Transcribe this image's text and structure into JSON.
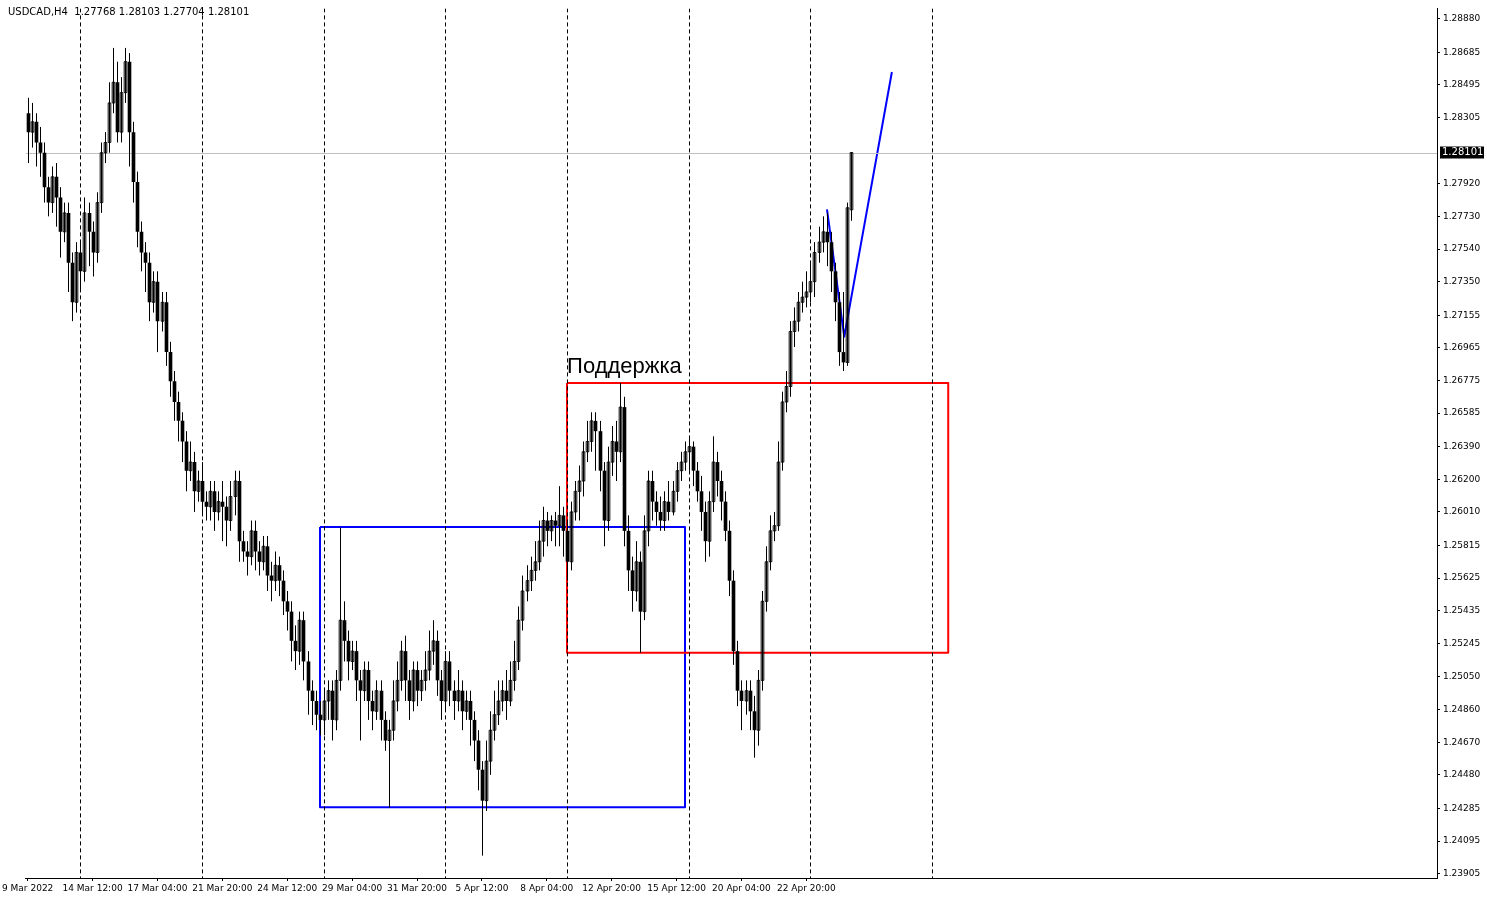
{
  "chart_data": {
    "type": "candlestick",
    "title": "USDCAD,H4  1.27768 1.28103 1.27704 1.28101",
    "categories": [
      "9 Mar 2022",
      null,
      null,
      null,
      null,
      null,
      null,
      null,
      null,
      null,
      null,
      null,
      null,
      null,
      null,
      null,
      "14 Mar 12:00",
      null,
      null,
      null,
      null,
      null,
      null,
      null,
      null,
      null,
      null,
      null,
      null,
      null,
      null,
      null,
      "17 Mar 04:00",
      null,
      null,
      null,
      null,
      null,
      null,
      null,
      null,
      null,
      null,
      null,
      null,
      null,
      null,
      null,
      "21 Mar 20:00",
      null,
      null,
      null,
      null,
      null,
      null,
      null,
      null,
      null,
      null,
      null,
      null,
      null,
      null,
      null,
      "24 Mar 12:00",
      null,
      null,
      null,
      null,
      null,
      null,
      null,
      null,
      null,
      null,
      null,
      null,
      null,
      null,
      null,
      "29 Mar 04:00",
      null,
      null,
      null,
      null,
      null,
      null,
      null,
      null,
      null,
      null,
      null,
      null,
      null,
      null,
      null,
      "31 Mar 20:00",
      null,
      null,
      null,
      null,
      null,
      null,
      null,
      null,
      null,
      null,
      null,
      null,
      null,
      null,
      null,
      "5 Apr 12:00",
      null,
      null,
      null,
      null,
      null,
      null,
      null,
      null,
      null,
      null,
      null,
      null,
      null,
      null,
      null,
      "8 Apr 04:00",
      null,
      null,
      null,
      null,
      null,
      null,
      null,
      null,
      null,
      null,
      null,
      null,
      null,
      null,
      null,
      "12 Apr 20:00",
      null,
      null,
      null,
      null,
      null,
      null,
      null,
      null,
      null,
      null,
      null,
      null,
      null,
      null,
      null,
      "15 Apr 12:00",
      null,
      null,
      null,
      null,
      null,
      null,
      null,
      null,
      null,
      null,
      null,
      null,
      null,
      null,
      null,
      "20 Apr 04:00",
      null,
      null,
      null,
      null,
      null,
      null,
      null,
      null,
      null,
      null,
      null,
      null,
      null,
      null,
      null,
      "22 Apr 20:00",
      null,
      null,
      null,
      null,
      null,
      null,
      null,
      null,
      null,
      null,
      null,
      null,
      null,
      null,
      null,
      null,
      null,
      null,
      null,
      null,
      null,
      null,
      null,
      null,
      null,
      null,
      null,
      null,
      null,
      null,
      null,
      null,
      null,
      null,
      null,
      null,
      null,
      null,
      null,
      null,
      null,
      null,
      null,
      null,
      null,
      null,
      null,
      null,
      null,
      null,
      null,
      null,
      null,
      null,
      null,
      null,
      null,
      null,
      null,
      null,
      null,
      null,
      null,
      null,
      null,
      null,
      null,
      null,
      null,
      null,
      null,
      null,
      null,
      null,
      null,
      null,
      null,
      null,
      null,
      null,
      null,
      null,
      null,
      null,
      null,
      null,
      null,
      null,
      null,
      null,
      null,
      null,
      null,
      null,
      null,
      null,
      null,
      null,
      null,
      null,
      null,
      null,
      null,
      null,
      null,
      null,
      null,
      null,
      null,
      null,
      null,
      null,
      null,
      null,
      null,
      null,
      null,
      null,
      null,
      null,
      null,
      null,
      null,
      null,
      null,
      null,
      null,
      null,
      null,
      null,
      null,
      null,
      null,
      null,
      null,
      null,
      null,
      null,
      null,
      null,
      null,
      null,
      null,
      null,
      null,
      null,
      null,
      null,
      null,
      null,
      null,
      null,
      null,
      null,
      null
    ],
    "ylim": [
      1.2388,
      1.2894
    ],
    "yticks": [
      {
        "value": 1.2888,
        "label": "1.28880"
      },
      {
        "value": 1.28685,
        "label": "1.28685"
      },
      {
        "value": 1.28495,
        "label": "1.28495"
      },
      {
        "value": 1.28305,
        "label": "1.28305"
      },
      {
        "value": 1.2792,
        "label": "1.27920"
      },
      {
        "value": 1.2773,
        "label": "1.27730"
      },
      {
        "value": 1.2754,
        "label": "1.27540"
      },
      {
        "value": 1.2735,
        "label": "1.27350"
      },
      {
        "value": 1.27155,
        "label": "1.27155"
      },
      {
        "value": 1.26965,
        "label": "1.26965"
      },
      {
        "value": 1.26775,
        "label": "1.26775"
      },
      {
        "value": 1.26585,
        "label": "1.26585"
      },
      {
        "value": 1.2639,
        "label": "1.26390"
      },
      {
        "value": 1.262,
        "label": "1.26200"
      },
      {
        "value": 1.2601,
        "label": "1.26010"
      },
      {
        "value": 1.25815,
        "label": "1.25815"
      },
      {
        "value": 1.25625,
        "label": "1.25625"
      },
      {
        "value": 1.25435,
        "label": "1.25435"
      },
      {
        "value": 1.25245,
        "label": "1.25245"
      },
      {
        "value": 1.2505,
        "label": "1.25050"
      },
      {
        "value": 1.2486,
        "label": "1.24860"
      },
      {
        "value": 1.2467,
        "label": "1.24670"
      },
      {
        "value": 1.2448,
        "label": "1.24480"
      },
      {
        "value": 1.24285,
        "label": "1.24285"
      },
      {
        "value": 1.24095,
        "label": "1.24095"
      },
      {
        "value": 1.23905,
        "label": "1.23905"
      }
    ],
    "grid": false,
    "legend": false,
    "ref_lines": [
      {
        "axis": "y",
        "value": 1.28101,
        "label": "1.28101",
        "color": "#c0c0c0",
        "line_style": "solid"
      }
    ],
    "annotations": [
      "Поддержка"
    ],
    "series": [
      {
        "color": "#000000",
        "ohlc": [
          [
            1.2833,
            1.2842,
            1.2804,
            1.2822
          ],
          [
            1.2822,
            1.2839,
            1.2813,
            1.2828
          ],
          [
            1.2828,
            1.2833,
            1.2802,
            1.2816
          ],
          [
            1.2816,
            1.2825,
            1.2796,
            1.281
          ],
          [
            1.281,
            1.2816,
            1.2781,
            1.279
          ],
          [
            1.279,
            1.2796,
            1.2773,
            1.2781
          ],
          [
            1.2781,
            1.2802,
            1.2775,
            1.2796
          ],
          [
            1.2796,
            1.2804,
            1.2767,
            1.2784
          ],
          [
            1.2784,
            1.279,
            1.2749,
            1.2764
          ],
          [
            1.2764,
            1.2781,
            1.2758,
            1.2775
          ],
          [
            1.2775,
            1.2781,
            1.2729,
            1.2746
          ],
          [
            1.2746,
            1.2752,
            1.2712,
            1.2723
          ],
          [
            1.2723,
            1.2758,
            1.2717,
            1.2752
          ],
          [
            1.2752,
            1.2758,
            1.2729,
            1.2741
          ],
          [
            1.2741,
            1.2784,
            1.2735,
            1.2775
          ],
          [
            1.2775,
            1.2781,
            1.2744,
            1.2764
          ],
          [
            1.2764,
            1.277,
            1.2738,
            1.2752
          ],
          [
            1.2752,
            1.2787,
            1.2746,
            1.2781
          ],
          [
            1.2781,
            1.2816,
            1.2775,
            1.281
          ],
          [
            1.281,
            1.2822,
            1.2804,
            1.2816
          ],
          [
            1.2816,
            1.2851,
            1.281,
            1.2839
          ],
          [
            1.2839,
            1.2871,
            1.2833,
            1.2851
          ],
          [
            1.2851,
            1.2863,
            1.2816,
            1.2822
          ],
          [
            1.2822,
            1.2854,
            1.2816,
            1.2845
          ],
          [
            1.2845,
            1.2871,
            1.2839,
            1.2863
          ],
          [
            1.2863,
            1.2868,
            1.2802,
            1.2822
          ],
          [
            1.2822,
            1.2828,
            1.2781,
            1.2793
          ],
          [
            1.2793,
            1.2799,
            1.2755,
            1.2764
          ],
          [
            1.2764,
            1.277,
            1.2741,
            1.2752
          ],
          [
            1.2752,
            1.2758,
            1.2729,
            1.2746
          ],
          [
            1.2746,
            1.2752,
            1.2712,
            1.2723
          ],
          [
            1.2723,
            1.2741,
            1.2717,
            1.2735
          ],
          [
            1.2735,
            1.2741,
            1.2694,
            1.2712
          ],
          [
            1.2712,
            1.2729,
            1.2706,
            1.2723
          ],
          [
            1.2723,
            1.2729,
            1.2686,
            1.2694
          ],
          [
            1.2694,
            1.27,
            1.2668,
            1.2677
          ],
          [
            1.2677,
            1.2683,
            1.2654,
            1.2665
          ],
          [
            1.2665,
            1.2671,
            1.2642,
            1.2654
          ],
          [
            1.2654,
            1.2659,
            1.263,
            1.2642
          ],
          [
            1.2642,
            1.2648,
            1.2613,
            1.2625
          ],
          [
            1.2625,
            1.2642,
            1.2619,
            1.263
          ],
          [
            1.263,
            1.2636,
            1.2601,
            1.2613
          ],
          [
            1.2613,
            1.2625,
            1.2607,
            1.2619
          ],
          [
            1.2619,
            1.263,
            1.2599,
            1.2607
          ],
          [
            1.2607,
            1.2613,
            1.2596,
            1.2604
          ],
          [
            1.2604,
            1.2619,
            1.2596,
            1.2613
          ],
          [
            1.2613,
            1.2619,
            1.259,
            1.2601
          ],
          [
            1.2601,
            1.2613,
            1.2596,
            1.2607
          ],
          [
            1.2607,
            1.2619,
            1.2584,
            1.2604
          ],
          [
            1.2604,
            1.261,
            1.2581,
            1.2596
          ],
          [
            1.2596,
            1.2619,
            1.259,
            1.261
          ],
          [
            1.261,
            1.2625,
            1.2599,
            1.2619
          ],
          [
            1.2619,
            1.2625,
            1.2572,
            1.2584
          ],
          [
            1.2584,
            1.259,
            1.2572,
            1.2578
          ],
          [
            1.2578,
            1.2584,
            1.2564,
            1.2575
          ],
          [
            1.2575,
            1.2596,
            1.257,
            1.259
          ],
          [
            1.259,
            1.2596,
            1.2567,
            1.2578
          ],
          [
            1.2578,
            1.2584,
            1.2564,
            1.2572
          ],
          [
            1.2572,
            1.2587,
            1.2567,
            1.2581
          ],
          [
            1.2581,
            1.2587,
            1.2555,
            1.2564
          ],
          [
            1.2564,
            1.2572,
            1.2549,
            1.2561
          ],
          [
            1.2561,
            1.2578,
            1.2555,
            1.257
          ],
          [
            1.257,
            1.2575,
            1.2552,
            1.2561
          ],
          [
            1.2561,
            1.2567,
            1.2541,
            1.2549
          ],
          [
            1.2549,
            1.2555,
            1.2532,
            1.2543
          ],
          [
            1.2543,
            1.2549,
            1.2514,
            1.2526
          ],
          [
            1.2526,
            1.2535,
            1.2509,
            1.252
          ],
          [
            1.252,
            1.2543,
            1.2512,
            1.2538
          ],
          [
            1.2538,
            1.2543,
            1.2503,
            1.2514
          ],
          [
            1.2514,
            1.252,
            1.2483,
            1.2497
          ],
          [
            1.2497,
            1.2503,
            1.2477,
            1.2491
          ],
          [
            1.2491,
            1.2497,
            1.2474,
            1.2483
          ],
          [
            1.2483,
            1.2491,
            1.2471,
            1.248
          ],
          [
            1.248,
            1.2497,
            1.2471,
            1.2491
          ],
          [
            1.2491,
            1.2503,
            1.248,
            1.2497
          ],
          [
            1.2497,
            1.2503,
            1.2468,
            1.248
          ],
          [
            1.248,
            1.2509,
            1.2474,
            1.2503
          ],
          [
            1.2503,
            1.2592,
            1.2497,
            1.2538
          ],
          [
            1.2538,
            1.2549,
            1.2514,
            1.2526
          ],
          [
            1.2526,
            1.2532,
            1.2503,
            1.2514
          ],
          [
            1.2514,
            1.2526,
            1.2509,
            1.252
          ],
          [
            1.252,
            1.2526,
            1.2491,
            1.2503
          ],
          [
            1.2503,
            1.2509,
            1.2468,
            1.2497
          ],
          [
            1.2497,
            1.2514,
            1.2491,
            1.2509
          ],
          [
            1.2509,
            1.2514,
            1.248,
            1.2491
          ],
          [
            1.2491,
            1.2497,
            1.2474,
            1.2485
          ],
          [
            1.2485,
            1.2503,
            1.248,
            1.2497
          ],
          [
            1.2497,
            1.2503,
            1.2468,
            1.248
          ],
          [
            1.248,
            1.2485,
            1.2462,
            1.2468
          ],
          [
            1.2468,
            1.248,
            1.2429,
            1.2474
          ],
          [
            1.2474,
            1.2503,
            1.2468,
            1.2491
          ],
          [
            1.2491,
            1.2514,
            1.2485,
            1.2503
          ],
          [
            1.2503,
            1.2526,
            1.2497,
            1.252
          ],
          [
            1.252,
            1.2529,
            1.2491,
            1.2503
          ],
          [
            1.2503,
            1.2509,
            1.248,
            1.2491
          ],
          [
            1.2491,
            1.2514,
            1.2485,
            1.2509
          ],
          [
            1.2509,
            1.2514,
            1.2488,
            1.2497
          ],
          [
            1.2497,
            1.2509,
            1.2491,
            1.2503
          ],
          [
            1.2503,
            1.252,
            1.2497,
            1.2509
          ],
          [
            1.2509,
            1.2532,
            1.2503,
            1.252
          ],
          [
            1.252,
            1.2538,
            1.2512,
            1.2526
          ],
          [
            1.2526,
            1.2532,
            1.2494,
            1.2503
          ],
          [
            1.2503,
            1.2509,
            1.248,
            1.2491
          ],
          [
            1.2491,
            1.252,
            1.2485,
            1.2514
          ],
          [
            1.2514,
            1.252,
            1.2488,
            1.2497
          ],
          [
            1.2497,
            1.2503,
            1.248,
            1.2491
          ],
          [
            1.2491,
            1.2509,
            1.2485,
            1.2497
          ],
          [
            1.2497,
            1.2503,
            1.2474,
            1.2485
          ],
          [
            1.2485,
            1.2497,
            1.248,
            1.2491
          ],
          [
            1.2491,
            1.2497,
            1.2465,
            1.248
          ],
          [
            1.248,
            1.2485,
            1.2456,
            1.2468
          ],
          [
            1.2468,
            1.2474,
            1.2439,
            1.2451
          ],
          [
            1.2451,
            1.2456,
            1.2401,
            1.2433
          ],
          [
            1.2433,
            1.2468,
            1.2427,
            1.2456
          ],
          [
            1.2456,
            1.2485,
            1.2448,
            1.2474
          ],
          [
            1.2474,
            1.2497,
            1.2468,
            1.2483
          ],
          [
            1.2483,
            1.2503,
            1.2477,
            1.2491
          ],
          [
            1.2491,
            1.2503,
            1.2485,
            1.2497
          ],
          [
            1.2497,
            1.2509,
            1.248,
            1.2491
          ],
          [
            1.2491,
            1.2514,
            1.2488,
            1.2503
          ],
          [
            1.2503,
            1.2526,
            1.2497,
            1.2514
          ],
          [
            1.2514,
            1.2546,
            1.2509,
            1.2538
          ],
          [
            1.2538,
            1.2564,
            1.2532,
            1.2555
          ],
          [
            1.2555,
            1.257,
            1.2549,
            1.2561
          ],
          [
            1.2561,
            1.2575,
            1.2555,
            1.2567
          ],
          [
            1.2567,
            1.2584,
            1.2561,
            1.2572
          ],
          [
            1.2572,
            1.2596,
            1.2567,
            1.2584
          ],
          [
            1.2584,
            1.2604,
            1.2575,
            1.2596
          ],
          [
            1.2596,
            1.2601,
            1.2581,
            1.259
          ],
          [
            1.259,
            1.2599,
            1.2584,
            1.2596
          ],
          [
            1.2596,
            1.2601,
            1.2581,
            1.2593
          ],
          [
            1.2593,
            1.2616,
            1.2581,
            1.2599
          ],
          [
            1.2599,
            1.2604,
            1.2575,
            1.259
          ],
          [
            1.259,
            1.2596,
            1.2561,
            1.2572
          ],
          [
            1.2572,
            1.2607,
            1.2567,
            1.2601
          ],
          [
            1.2601,
            1.2619,
            1.2596,
            1.2613
          ],
          [
            1.2613,
            1.2628,
            1.2596,
            1.2619
          ],
          [
            1.2619,
            1.2642,
            1.261,
            1.2636
          ],
          [
            1.2636,
            1.2654,
            1.263,
            1.2642
          ],
          [
            1.2642,
            1.2659,
            1.2636,
            1.2654
          ],
          [
            1.2654,
            1.2659,
            1.2625,
            1.2648
          ],
          [
            1.2648,
            1.2654,
            1.2613,
            1.2625
          ],
          [
            1.2625,
            1.263,
            1.2581,
            1.2596
          ],
          [
            1.2596,
            1.2639,
            1.259,
            1.263
          ],
          [
            1.263,
            1.2651,
            1.2622,
            1.2642
          ],
          [
            1.2642,
            1.2654,
            1.2619,
            1.2636
          ],
          [
            1.2636,
            1.2676,
            1.263,
            1.2662
          ],
          [
            1.2662,
            1.2668,
            1.2581,
            1.259
          ],
          [
            1.259,
            1.2599,
            1.2555,
            1.2567
          ],
          [
            1.2567,
            1.2575,
            1.2543,
            1.2555
          ],
          [
            1.2555,
            1.2584,
            1.2549,
            1.2572
          ],
          [
            1.2572,
            1.2578,
            1.2519,
            1.2543
          ],
          [
            1.2543,
            1.2599,
            1.2538,
            1.259
          ],
          [
            1.259,
            1.2625,
            1.2581,
            1.2619
          ],
          [
            1.2619,
            1.2625,
            1.2596,
            1.2607
          ],
          [
            1.2607,
            1.2613,
            1.2593,
            1.2601
          ],
          [
            1.2601,
            1.261,
            1.259,
            1.2596
          ],
          [
            1.2596,
            1.2613,
            1.259,
            1.2607
          ],
          [
            1.2607,
            1.2619,
            1.2596,
            1.2601
          ],
          [
            1.2601,
            1.2619,
            1.2599,
            1.2613
          ],
          [
            1.2613,
            1.263,
            1.2607,
            1.2625
          ],
          [
            1.2625,
            1.2636,
            1.2619,
            1.263
          ],
          [
            1.263,
            1.2642,
            1.2625,
            1.2636
          ],
          [
            1.2636,
            1.2645,
            1.2625,
            1.2639
          ],
          [
            1.2639,
            1.2642,
            1.2616,
            1.2625
          ],
          [
            1.2625,
            1.263,
            1.2607,
            1.2613
          ],
          [
            1.2613,
            1.2622,
            1.259,
            1.2601
          ],
          [
            1.2601,
            1.2607,
            1.2572,
            1.2584
          ],
          [
            1.2584,
            1.2613,
            1.2575,
            1.2607
          ],
          [
            1.2607,
            1.2645,
            1.2601,
            1.263
          ],
          [
            1.263,
            1.2636,
            1.261,
            1.2619
          ],
          [
            1.2619,
            1.2625,
            1.2596,
            1.2607
          ],
          [
            1.2607,
            1.2613,
            1.2584,
            1.259
          ],
          [
            1.259,
            1.2596,
            1.2552,
            1.2561
          ],
          [
            1.2561,
            1.2567,
            1.2512,
            1.252
          ],
          [
            1.252,
            1.2526,
            1.2488,
            1.2497
          ],
          [
            1.2497,
            1.2503,
            1.2474,
            1.2491
          ],
          [
            1.2491,
            1.2503,
            1.2483,
            1.2497
          ],
          [
            1.2497,
            1.2503,
            1.2474,
            1.2485
          ],
          [
            1.2485,
            1.2494,
            1.2458,
            1.2474
          ],
          [
            1.2474,
            1.2509,
            1.2465,
            1.2503
          ],
          [
            1.2503,
            1.2555,
            1.2497,
            1.2549
          ],
          [
            1.2549,
            1.2581,
            1.2543,
            1.2572
          ],
          [
            1.2572,
            1.2599,
            1.2567,
            1.259
          ],
          [
            1.259,
            1.2601,
            1.2584,
            1.2593
          ],
          [
            1.2593,
            1.2642,
            1.259,
            1.263
          ],
          [
            1.263,
            1.2671,
            1.2625,
            1.2665
          ],
          [
            1.2665,
            1.2683,
            1.2659,
            1.2674
          ],
          [
            1.2674,
            1.2712,
            1.2668,
            1.2706
          ],
          [
            1.2706,
            1.272,
            1.2697,
            1.2712
          ],
          [
            1.2712,
            1.2729,
            1.2706,
            1.2723
          ],
          [
            1.2723,
            1.2735,
            1.2717,
            1.2726
          ],
          [
            1.2726,
            1.2741,
            1.272,
            1.2729
          ],
          [
            1.2729,
            1.2746,
            1.2723,
            1.2735
          ],
          [
            1.2735,
            1.2758,
            1.2726,
            1.2752
          ],
          [
            1.2752,
            1.2767,
            1.2746,
            1.2758
          ],
          [
            1.2758,
            1.2773,
            1.2752,
            1.2764
          ],
          [
            1.2764,
            1.2775,
            1.2744,
            1.2758
          ],
          [
            1.2758,
            1.2764,
            1.2729,
            1.2741
          ],
          [
            1.2741,
            1.2746,
            1.2712,
            1.2723
          ],
          [
            1.2723,
            1.2729,
            1.2686,
            1.2694
          ],
          [
            1.2694,
            1.2729,
            1.2683,
            1.2688
          ],
          [
            1.2688,
            1.2781,
            1.2686,
            1.2778
          ],
          [
            1.27768,
            1.28103,
            1.27704,
            1.28101
          ],
          null,
          null,
          null,
          null,
          null,
          null,
          null,
          null,
          null,
          null,
          null,
          null,
          null,
          null,
          null,
          null,
          null,
          null,
          null,
          null,
          null,
          null,
          null,
          null,
          null,
          null,
          null,
          null,
          null,
          null,
          null,
          null,
          null,
          null,
          null,
          null,
          null,
          null,
          null,
          null,
          null,
          null,
          null,
          null,
          null,
          null,
          null,
          null,
          null,
          null,
          null,
          null,
          null,
          null,
          null,
          null,
          null,
          null,
          null,
          null,
          null,
          null,
          null,
          null,
          null,
          null,
          null,
          null,
          null,
          null,
          null,
          null,
          null,
          null,
          null,
          null,
          null,
          null,
          null,
          null,
          null,
          null,
          null,
          null,
          null,
          null,
          null,
          null,
          null,
          null,
          null,
          null,
          null,
          null,
          null,
          null,
          null,
          null,
          null,
          null,
          null,
          null,
          null,
          null,
          null,
          null,
          null,
          null,
          null,
          null,
          null,
          null,
          null,
          null,
          null,
          null,
          null,
          null,
          null,
          null,
          null,
          null,
          null,
          null,
          null,
          null,
          null,
          null,
          null,
          null,
          null,
          null,
          null,
          null,
          null,
          null,
          null,
          null,
          null,
          null,
          null,
          null,
          null,
          null
        ]
      }
    ]
  }
}
